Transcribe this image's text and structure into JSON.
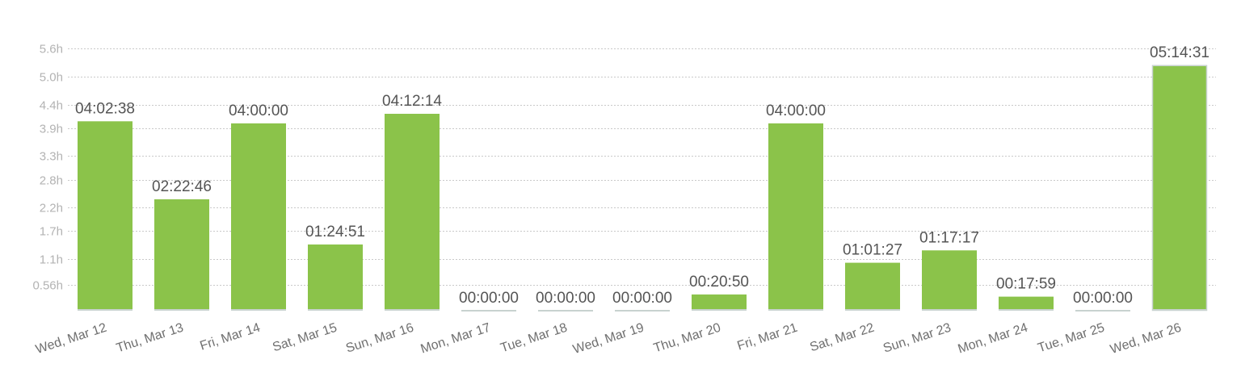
{
  "chart_data": {
    "type": "bar",
    "title": "",
    "xlabel": "",
    "ylabel": "",
    "ylim": [
      0,
      5.6
    ],
    "grid": true,
    "y_ticks": [
      0.56,
      1.1,
      1.7,
      2.2,
      2.8,
      3.3,
      3.9,
      4.4,
      5.0,
      5.6
    ],
    "y_tick_labels": [
      "0.56h",
      "1.1h",
      "1.7h",
      "2.2h",
      "2.8h",
      "3.3h",
      "3.9h",
      "4.4h",
      "5.0h",
      "5.6h"
    ],
    "categories": [
      "Wed, Mar 12",
      "Thu, Mar 13",
      "Fri, Mar 14",
      "Sat, Mar 15",
      "Sun, Mar 16",
      "Mon, Mar 17",
      "Tue, Mar 18",
      "Wed, Mar 19",
      "Thu, Mar 20",
      "Fri, Mar 21",
      "Sat, Mar 22",
      "Sun, Mar 23",
      "Mon, Mar 24",
      "Tue, Mar 25",
      "Wed, Mar 26"
    ],
    "values": [
      4.044,
      2.379,
      4.0,
      1.414,
      4.204,
      0,
      0,
      0,
      0.347,
      4.0,
      1.024,
      1.288,
      0.3,
      0,
      5.242
    ],
    "data_labels": [
      "04:02:38",
      "02:22:46",
      "04:00:00",
      "01:24:51",
      "04:12:14",
      "00:00:00",
      "00:00:00",
      "00:00:00",
      "00:20:50",
      "04:00:00",
      "01:01:27",
      "01:17:17",
      "00:17:59",
      "00:00:00",
      "05:14:31"
    ],
    "colors": {
      "bar": "#8bc34a",
      "bar_edge_highlight": "#c8d2cf",
      "empty_bar": "#c8d2cf",
      "grid": "#c9c9c9"
    }
  }
}
